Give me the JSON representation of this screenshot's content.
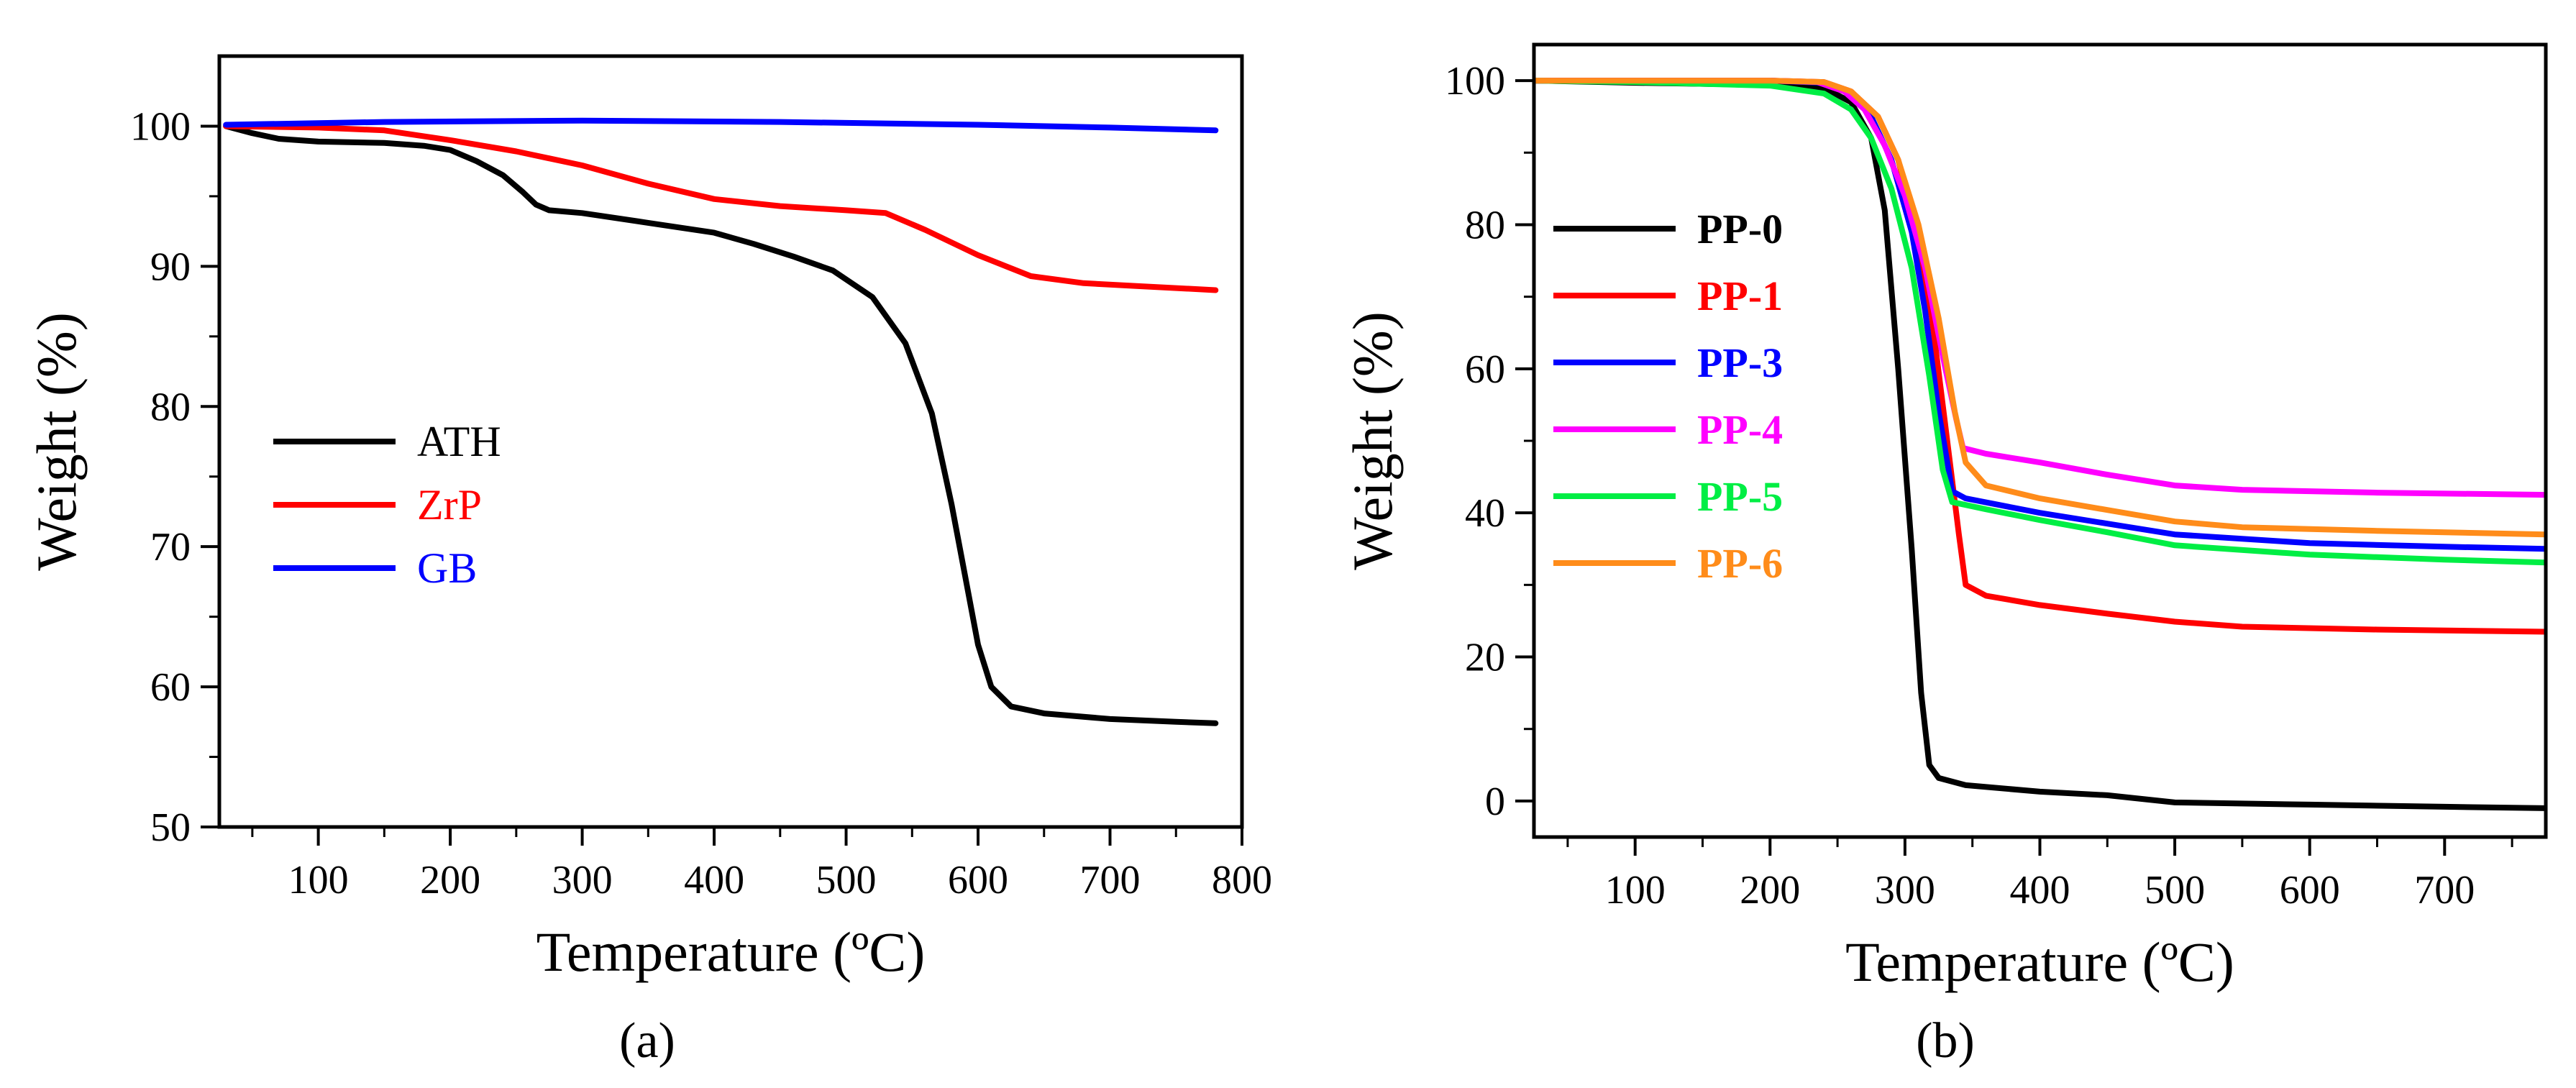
{
  "colors": {
    "black": "#000000",
    "red": "#ff0000",
    "blue": "#0000ff",
    "magenta": "#ff00ff",
    "green": "#00ee44",
    "orange": "#ff8c1a"
  },
  "chart_data": [
    {
      "type": "line",
      "panel": "a",
      "caption": "(a)",
      "xlabel": "Temperature (ºC)",
      "ylabel": "Weight (%)",
      "xlim": [
        25,
        800
      ],
      "ylim": [
        50,
        105
      ],
      "xticks": [
        100,
        200,
        300,
        400,
        500,
        600,
        700,
        800
      ],
      "yticks": [
        50,
        60,
        70,
        80,
        90,
        100
      ],
      "legend_position": "center-left",
      "series": [
        {
          "name": "ATH",
          "color": "#000000",
          "points": [
            [
              30,
              100
            ],
            [
              50,
              99.5
            ],
            [
              70,
              99.1
            ],
            [
              100,
              98.9
            ],
            [
              150,
              98.8
            ],
            [
              180,
              98.6
            ],
            [
              200,
              98.3
            ],
            [
              220,
              97.5
            ],
            [
              240,
              96.5
            ],
            [
              255,
              95.3
            ],
            [
              265,
              94.4
            ],
            [
              275,
              94
            ],
            [
              300,
              93.8
            ],
            [
              350,
              93.1
            ],
            [
              400,
              92.4
            ],
            [
              430,
              91.6
            ],
            [
              460,
              90.7
            ],
            [
              490,
              89.7
            ],
            [
              520,
              87.8
            ],
            [
              545,
              84.5
            ],
            [
              565,
              79.5
            ],
            [
              580,
              73
            ],
            [
              590,
              68
            ],
            [
              600,
              63
            ],
            [
              610,
              60
            ],
            [
              625,
              58.6
            ],
            [
              650,
              58.1
            ],
            [
              700,
              57.7
            ],
            [
              750,
              57.5
            ],
            [
              780,
              57.4
            ]
          ]
        },
        {
          "name": "ZrP",
          "color": "#ff0000",
          "points": [
            [
              30,
              100
            ],
            [
              100,
              99.9
            ],
            [
              150,
              99.7
            ],
            [
              200,
              99
            ],
            [
              250,
              98.2
            ],
            [
              300,
              97.2
            ],
            [
              350,
              95.9
            ],
            [
              400,
              94.8
            ],
            [
              450,
              94.3
            ],
            [
              500,
              94
            ],
            [
              530,
              93.8
            ],
            [
              560,
              92.6
            ],
            [
              600,
              90.8
            ],
            [
              640,
              89.3
            ],
            [
              680,
              88.8
            ],
            [
              720,
              88.6
            ],
            [
              780,
              88.3
            ]
          ]
        },
        {
          "name": "GB",
          "color": "#0000ff",
          "points": [
            [
              30,
              100.1
            ],
            [
              150,
              100.3
            ],
            [
              300,
              100.4
            ],
            [
              450,
              100.3
            ],
            [
              600,
              100.1
            ],
            [
              700,
              99.9
            ],
            [
              780,
              99.7
            ]
          ]
        }
      ]
    },
    {
      "type": "line",
      "panel": "b",
      "caption": "(b)",
      "xlabel": "Temperature (ºC)",
      "ylabel": "Weight (%)",
      "xlim": [
        25,
        775
      ],
      "ylim": [
        -5,
        105
      ],
      "xticks": [
        100,
        200,
        300,
        400,
        500,
        600,
        700
      ],
      "yticks": [
        0,
        20,
        40,
        60,
        80,
        100
      ],
      "legend_position": "center-left",
      "series": [
        {
          "name": "PP-0",
          "color": "#000000",
          "points": [
            [
              25,
              100
            ],
            [
              100,
              99.7
            ],
            [
              200,
              99.4
            ],
            [
              240,
              99
            ],
            [
              260,
              97
            ],
            [
              275,
              92
            ],
            [
              285,
              82
            ],
            [
              295,
              60
            ],
            [
              305,
              35
            ],
            [
              312,
              15
            ],
            [
              318,
              5
            ],
            [
              325,
              3.2
            ],
            [
              345,
              2.2
            ],
            [
              400,
              1.3
            ],
            [
              450,
              0.8
            ],
            [
              500,
              -0.2
            ],
            [
              600,
              -0.5
            ],
            [
              700,
              -0.8
            ],
            [
              775,
              -1
            ]
          ]
        },
        {
          "name": "PP-1",
          "color": "#ff0000",
          "points": [
            [
              25,
              100
            ],
            [
              100,
              100
            ],
            [
              200,
              100
            ],
            [
              240,
              99.8
            ],
            [
              260,
              98.5
            ],
            [
              280,
              95
            ],
            [
              295,
              89
            ],
            [
              310,
              78
            ],
            [
              320,
              67
            ],
            [
              330,
              52
            ],
            [
              340,
              37
            ],
            [
              345,
              30
            ],
            [
              360,
              28.5
            ],
            [
              400,
              27.2
            ],
            [
              450,
              26
            ],
            [
              500,
              24.9
            ],
            [
              550,
              24.2
            ],
            [
              650,
              23.8
            ],
            [
              775,
              23.5
            ]
          ]
        },
        {
          "name": "PP-3",
          "color": "#0000ff",
          "points": [
            [
              25,
              100
            ],
            [
              100,
              100
            ],
            [
              200,
              100
            ],
            [
              240,
              99.7
            ],
            [
              260,
              98.2
            ],
            [
              275,
              95
            ],
            [
              290,
              89
            ],
            [
              305,
              79
            ],
            [
              315,
              68
            ],
            [
              325,
              54
            ],
            [
              335,
              43
            ],
            [
              345,
              42
            ],
            [
              400,
              40
            ],
            [
              450,
              38.5
            ],
            [
              500,
              37
            ],
            [
              600,
              35.8
            ],
            [
              700,
              35.3
            ],
            [
              775,
              35
            ]
          ]
        },
        {
          "name": "PP-4",
          "color": "#ff00ff",
          "points": [
            [
              25,
              100
            ],
            [
              100,
              100
            ],
            [
              200,
              100
            ],
            [
              235,
              99.8
            ],
            [
              255,
              98.5
            ],
            [
              270,
              96
            ],
            [
              285,
              91
            ],
            [
              300,
              84
            ],
            [
              315,
              74
            ],
            [
              330,
              60
            ],
            [
              338,
              53
            ],
            [
              343,
              49
            ],
            [
              360,
              48.2
            ],
            [
              400,
              47
            ],
            [
              450,
              45.3
            ],
            [
              500,
              43.8
            ],
            [
              550,
              43.2
            ],
            [
              650,
              42.8
            ],
            [
              775,
              42.5
            ]
          ]
        },
        {
          "name": "PP-5",
          "color": "#00ee44",
          "points": [
            [
              25,
              100
            ],
            [
              100,
              99.8
            ],
            [
              200,
              99.3
            ],
            [
              240,
              98.2
            ],
            [
              260,
              96
            ],
            [
              275,
              92
            ],
            [
              290,
              85
            ],
            [
              305,
              74
            ],
            [
              318,
              59
            ],
            [
              328,
              46
            ],
            [
              335,
              41.5
            ],
            [
              360,
              40.5
            ],
            [
              400,
              39
            ],
            [
              450,
              37.3
            ],
            [
              500,
              35.5
            ],
            [
              600,
              34.2
            ],
            [
              700,
              33.5
            ],
            [
              775,
              33.1
            ]
          ]
        },
        {
          "name": "PP-6",
          "color": "#ff8c1a",
          "points": [
            [
              25,
              100
            ],
            [
              100,
              100
            ],
            [
              200,
              100
            ],
            [
              240,
              99.8
            ],
            [
              260,
              98.5
            ],
            [
              280,
              95
            ],
            [
              295,
              89
            ],
            [
              310,
              80
            ],
            [
              325,
              67
            ],
            [
              337,
              54
            ],
            [
              345,
              47
            ],
            [
              360,
              43.8
            ],
            [
              400,
              42
            ],
            [
              450,
              40.4
            ],
            [
              500,
              38.8
            ],
            [
              550,
              38
            ],
            [
              650,
              37.5
            ],
            [
              775,
              37
            ]
          ]
        }
      ]
    }
  ]
}
